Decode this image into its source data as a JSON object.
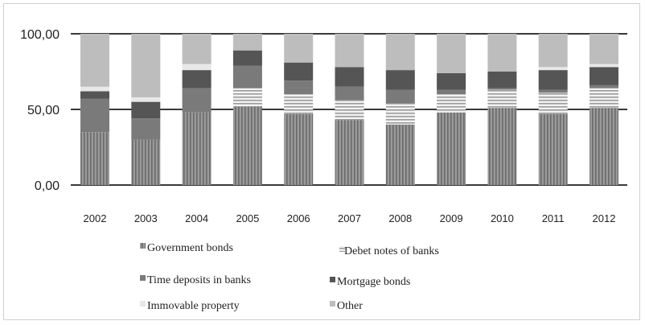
{
  "chart_data": {
    "type": "bar",
    "stacked": true,
    "categories": [
      "2002",
      "2003",
      "2004",
      "2005",
      "2006",
      "2007",
      "2008",
      "2009",
      "2010",
      "2011",
      "2012"
    ],
    "y_ticks": [
      "0,00",
      "50,00",
      "100,00"
    ],
    "ylim": [
      0,
      100
    ],
    "grid": true,
    "legend_position": "bottom",
    "series": [
      {
        "name": "Government bonds",
        "color": "#8c8c8c",
        "pattern": "vertical-lines",
        "values": [
          35,
          30,
          48,
          52,
          47,
          43,
          40,
          48,
          51,
          47,
          51
        ]
      },
      {
        "name": "Debet notes of banks",
        "color": "#d2d2d2",
        "pattern": "horizontal-lines",
        "values": [
          0,
          0,
          0,
          12,
          13,
          13,
          14,
          12,
          12,
          14,
          13
        ]
      },
      {
        "name": "Time deposits in banks",
        "color": "#7a7a7a",
        "pattern": "solid",
        "values": [
          22,
          14,
          16,
          15,
          9,
          9,
          9,
          3,
          1,
          2,
          2
        ]
      },
      {
        "name": "Mortgage bonds",
        "color": "#555555",
        "pattern": "solid",
        "values": [
          5,
          11,
          12,
          10,
          12,
          13,
          13,
          11,
          11,
          13,
          12
        ]
      },
      {
        "name": "Immovable property",
        "color": "#e8e8e8",
        "pattern": "solid",
        "values": [
          3,
          3,
          4,
          0,
          0,
          0,
          0,
          0,
          0,
          2,
          2
        ]
      },
      {
        "name": "Other",
        "color": "#bdbdbd",
        "pattern": "solid",
        "values": [
          35,
          42,
          20,
          11,
          19,
          22,
          24,
          26,
          25,
          22,
          20
        ]
      }
    ]
  }
}
